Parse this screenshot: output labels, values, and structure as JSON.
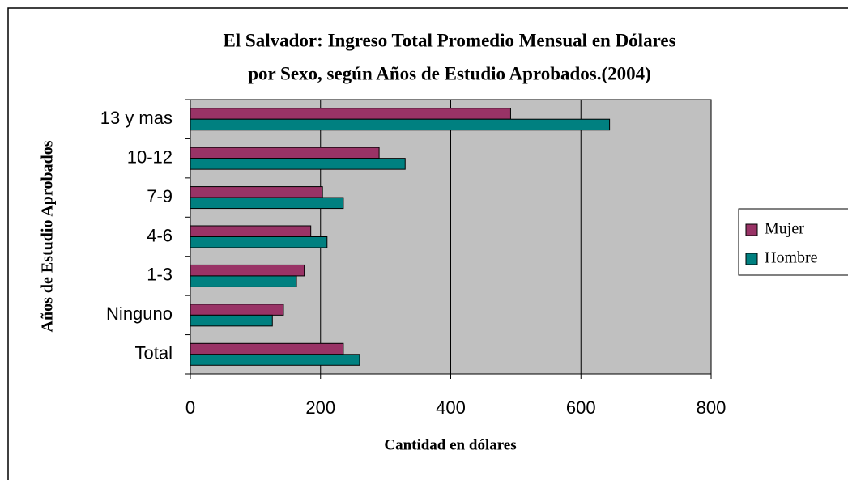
{
  "chart_data": {
    "type": "bar",
    "orientation": "horizontal",
    "title": [
      "El Salvador: Ingreso Total Promedio Mensual en Dólares",
      "por Sexo, según Años de Estudio Aprobados.(2004)"
    ],
    "categories": [
      "13 y mas",
      "10-12",
      "7-9",
      "4-6",
      "1-3",
      "Ninguno",
      "Total"
    ],
    "series": [
      {
        "name": "Mujer",
        "color": "#993366",
        "values": [
          492,
          290,
          203,
          185,
          175,
          143,
          235
        ]
      },
      {
        "name": "Hombre",
        "color": "#008080",
        "values": [
          644,
          330,
          235,
          210,
          163,
          126,
          260
        ]
      }
    ],
    "xlim": [
      0,
      800
    ],
    "xticks": [
      0,
      200,
      400,
      600,
      800
    ],
    "x_label": "Cantidad en dólares",
    "y_label": "Años de Estudio Aprobados",
    "grid": true,
    "legend": "right"
  }
}
